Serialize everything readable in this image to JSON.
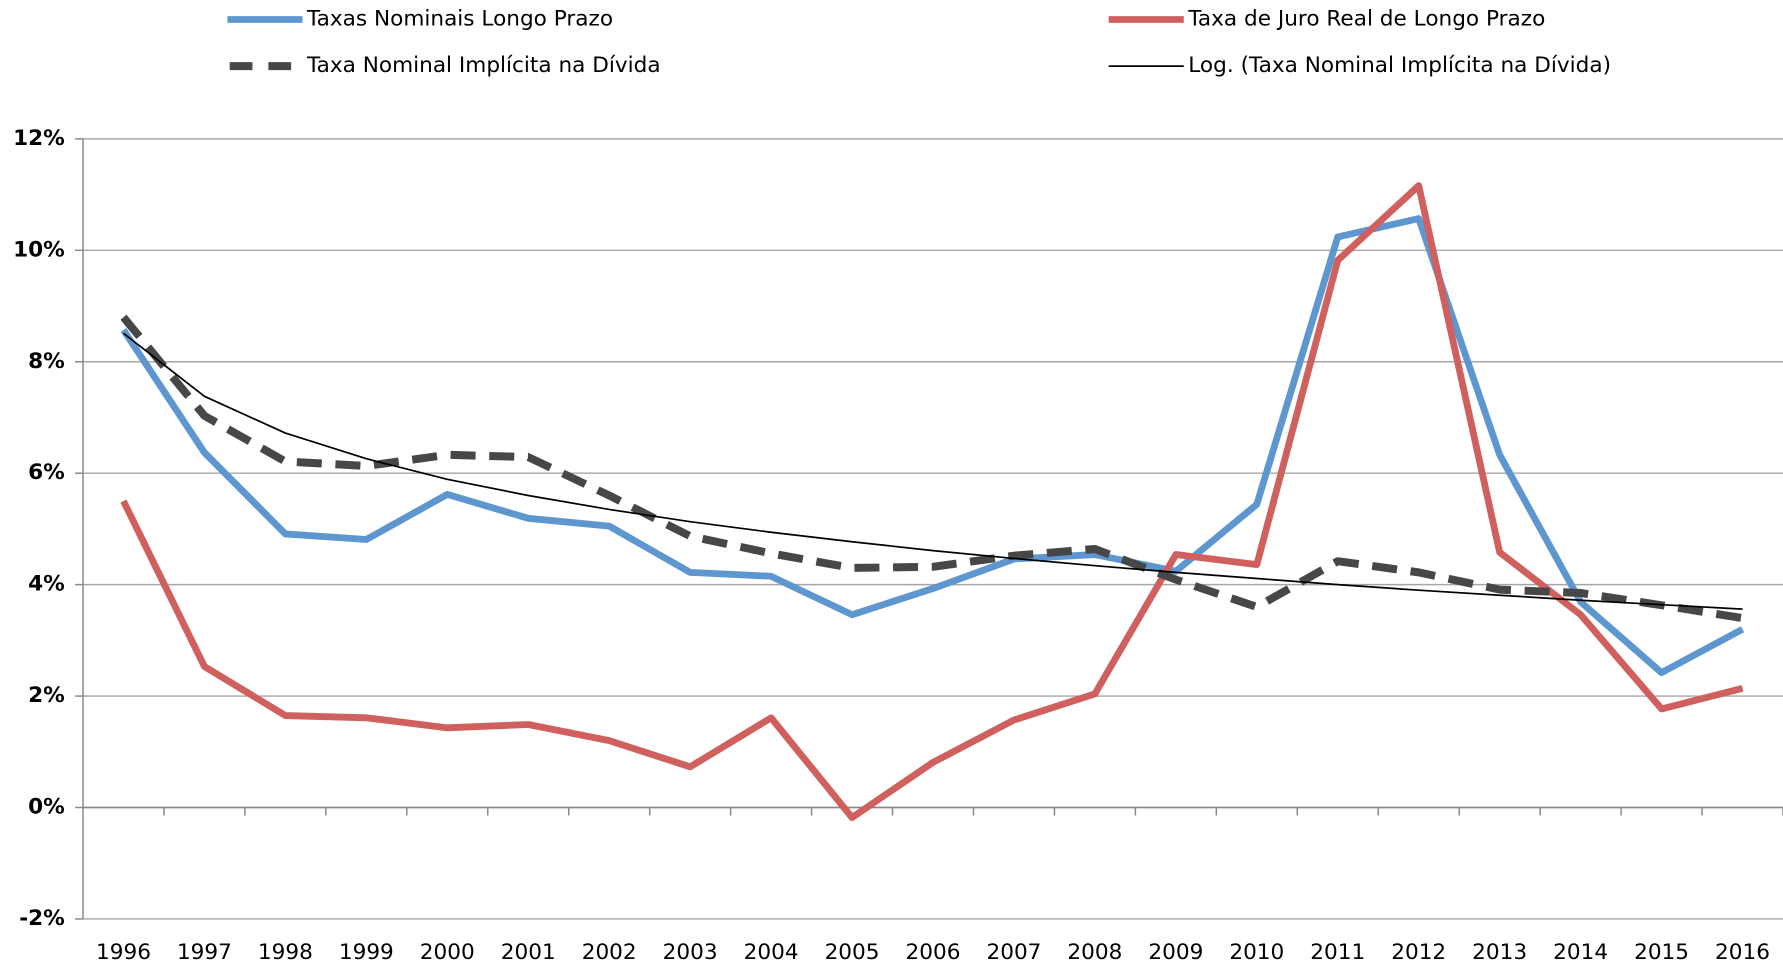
{
  "chart_data": {
    "type": "line",
    "categories": [
      "1996",
      "1997",
      "1998",
      "1999",
      "2000",
      "2001",
      "2002",
      "2003",
      "2004",
      "2005",
      "2006",
      "2007",
      "2008",
      "2009",
      "2010",
      "2011",
      "2012",
      "2013",
      "2014",
      "2015",
      "2016"
    ],
    "series": [
      {
        "name": "Taxas Nominais Longo Prazo",
        "color": "#5e97d0",
        "style": "solid",
        "values": [
          8.57,
          6.37,
          4.91,
          4.81,
          5.62,
          5.19,
          5.05,
          4.22,
          4.15,
          3.46,
          3.93,
          4.46,
          4.54,
          4.24,
          5.44,
          10.24,
          10.57,
          6.33,
          3.69,
          2.42,
          3.2
        ]
      },
      {
        "name": "Taxa de Juro Real de Longo Prazo",
        "color": "#d0605e",
        "style": "solid",
        "values": [
          5.5,
          2.53,
          1.65,
          1.61,
          1.43,
          1.49,
          1.2,
          0.73,
          1.61,
          -0.18,
          0.81,
          1.57,
          2.04,
          4.54,
          4.36,
          9.82,
          11.16,
          4.58,
          3.46,
          1.77,
          2.14
        ]
      },
      {
        "name": "Taxa Nominal Implícita na Dívida",
        "color": "#474747",
        "style": "dashed",
        "values": [
          8.8,
          7.03,
          6.21,
          6.13,
          6.33,
          6.29,
          5.6,
          4.87,
          4.56,
          4.3,
          4.32,
          4.52,
          4.64,
          4.09,
          3.6,
          4.42,
          4.22,
          3.91,
          3.85,
          3.63,
          3.4
        ]
      },
      {
        "name": "Log. (Taxa Nominal Implícita na Dívida)",
        "color": "#000000",
        "style": "trendline",
        "values": [
          8.51,
          7.38,
          6.72,
          6.26,
          5.89,
          5.6,
          5.35,
          5.13,
          4.94,
          4.77,
          4.61,
          4.47,
          4.34,
          4.22,
          4.11,
          4.0,
          3.9,
          3.81,
          3.72,
          3.64,
          3.56
        ]
      }
    ],
    "ylim": [
      -2,
      12
    ],
    "yticks": [
      {
        "value": -2,
        "label": "-2%"
      },
      {
        "value": 0,
        "label": "0%"
      },
      {
        "value": 2,
        "label": "2%"
      },
      {
        "value": 4,
        "label": "4%"
      },
      {
        "value": 6,
        "label": "6%"
      },
      {
        "value": 8,
        "label": "8%"
      },
      {
        "value": 10,
        "label": "10%"
      },
      {
        "value": 12,
        "label": "12%"
      }
    ],
    "grid": true,
    "legend": "top"
  }
}
